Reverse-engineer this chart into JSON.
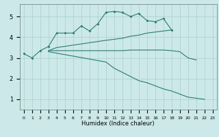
{
  "xlabel": "Humidex (Indice chaleur)",
  "ylabel": "",
  "bg_color": "#cce8e8",
  "line_color": "#2a7a72",
  "grid_color": "#aacfcf",
  "xlim": [
    -0.5,
    23.5
  ],
  "ylim": [
    0.5,
    5.6
  ],
  "yticks": [
    1,
    2,
    3,
    4,
    5
  ],
  "xticks": [
    0,
    1,
    2,
    3,
    4,
    5,
    6,
    7,
    8,
    9,
    10,
    11,
    12,
    13,
    14,
    15,
    16,
    17,
    18,
    19,
    20,
    21,
    22,
    23
  ],
  "line1_x": [
    0,
    1,
    2,
    3,
    4,
    5,
    6,
    7,
    8,
    9,
    10,
    11,
    12,
    13,
    14,
    15,
    16,
    17,
    18
  ],
  "line1_y": [
    3.2,
    3.0,
    3.35,
    3.55,
    4.2,
    4.2,
    4.2,
    4.55,
    4.3,
    4.65,
    5.2,
    5.25,
    5.2,
    5.0,
    5.15,
    4.8,
    4.75,
    4.9,
    4.35
  ],
  "line2_x": [
    3,
    4,
    10,
    11,
    12,
    13,
    14,
    15,
    16,
    17,
    18
  ],
  "line2_y": [
    3.35,
    3.5,
    3.85,
    3.9,
    3.95,
    4.05,
    4.1,
    4.2,
    4.25,
    4.3,
    4.35
  ],
  "line3_x": [
    3,
    4,
    10,
    11,
    12,
    13,
    14,
    15,
    16,
    17,
    18,
    19,
    20,
    21
  ],
  "line3_y": [
    3.35,
    3.35,
    3.35,
    3.35,
    3.35,
    3.38,
    3.38,
    3.38,
    3.38,
    3.38,
    3.35,
    3.3,
    3.0,
    2.9
  ],
  "line4_x": [
    3,
    10,
    11,
    12,
    13,
    14,
    15,
    16,
    17,
    18,
    19,
    20,
    22
  ],
  "line4_y": [
    3.3,
    2.8,
    2.5,
    2.3,
    2.1,
    1.9,
    1.8,
    1.65,
    1.5,
    1.4,
    1.25,
    1.1,
    1.0
  ]
}
